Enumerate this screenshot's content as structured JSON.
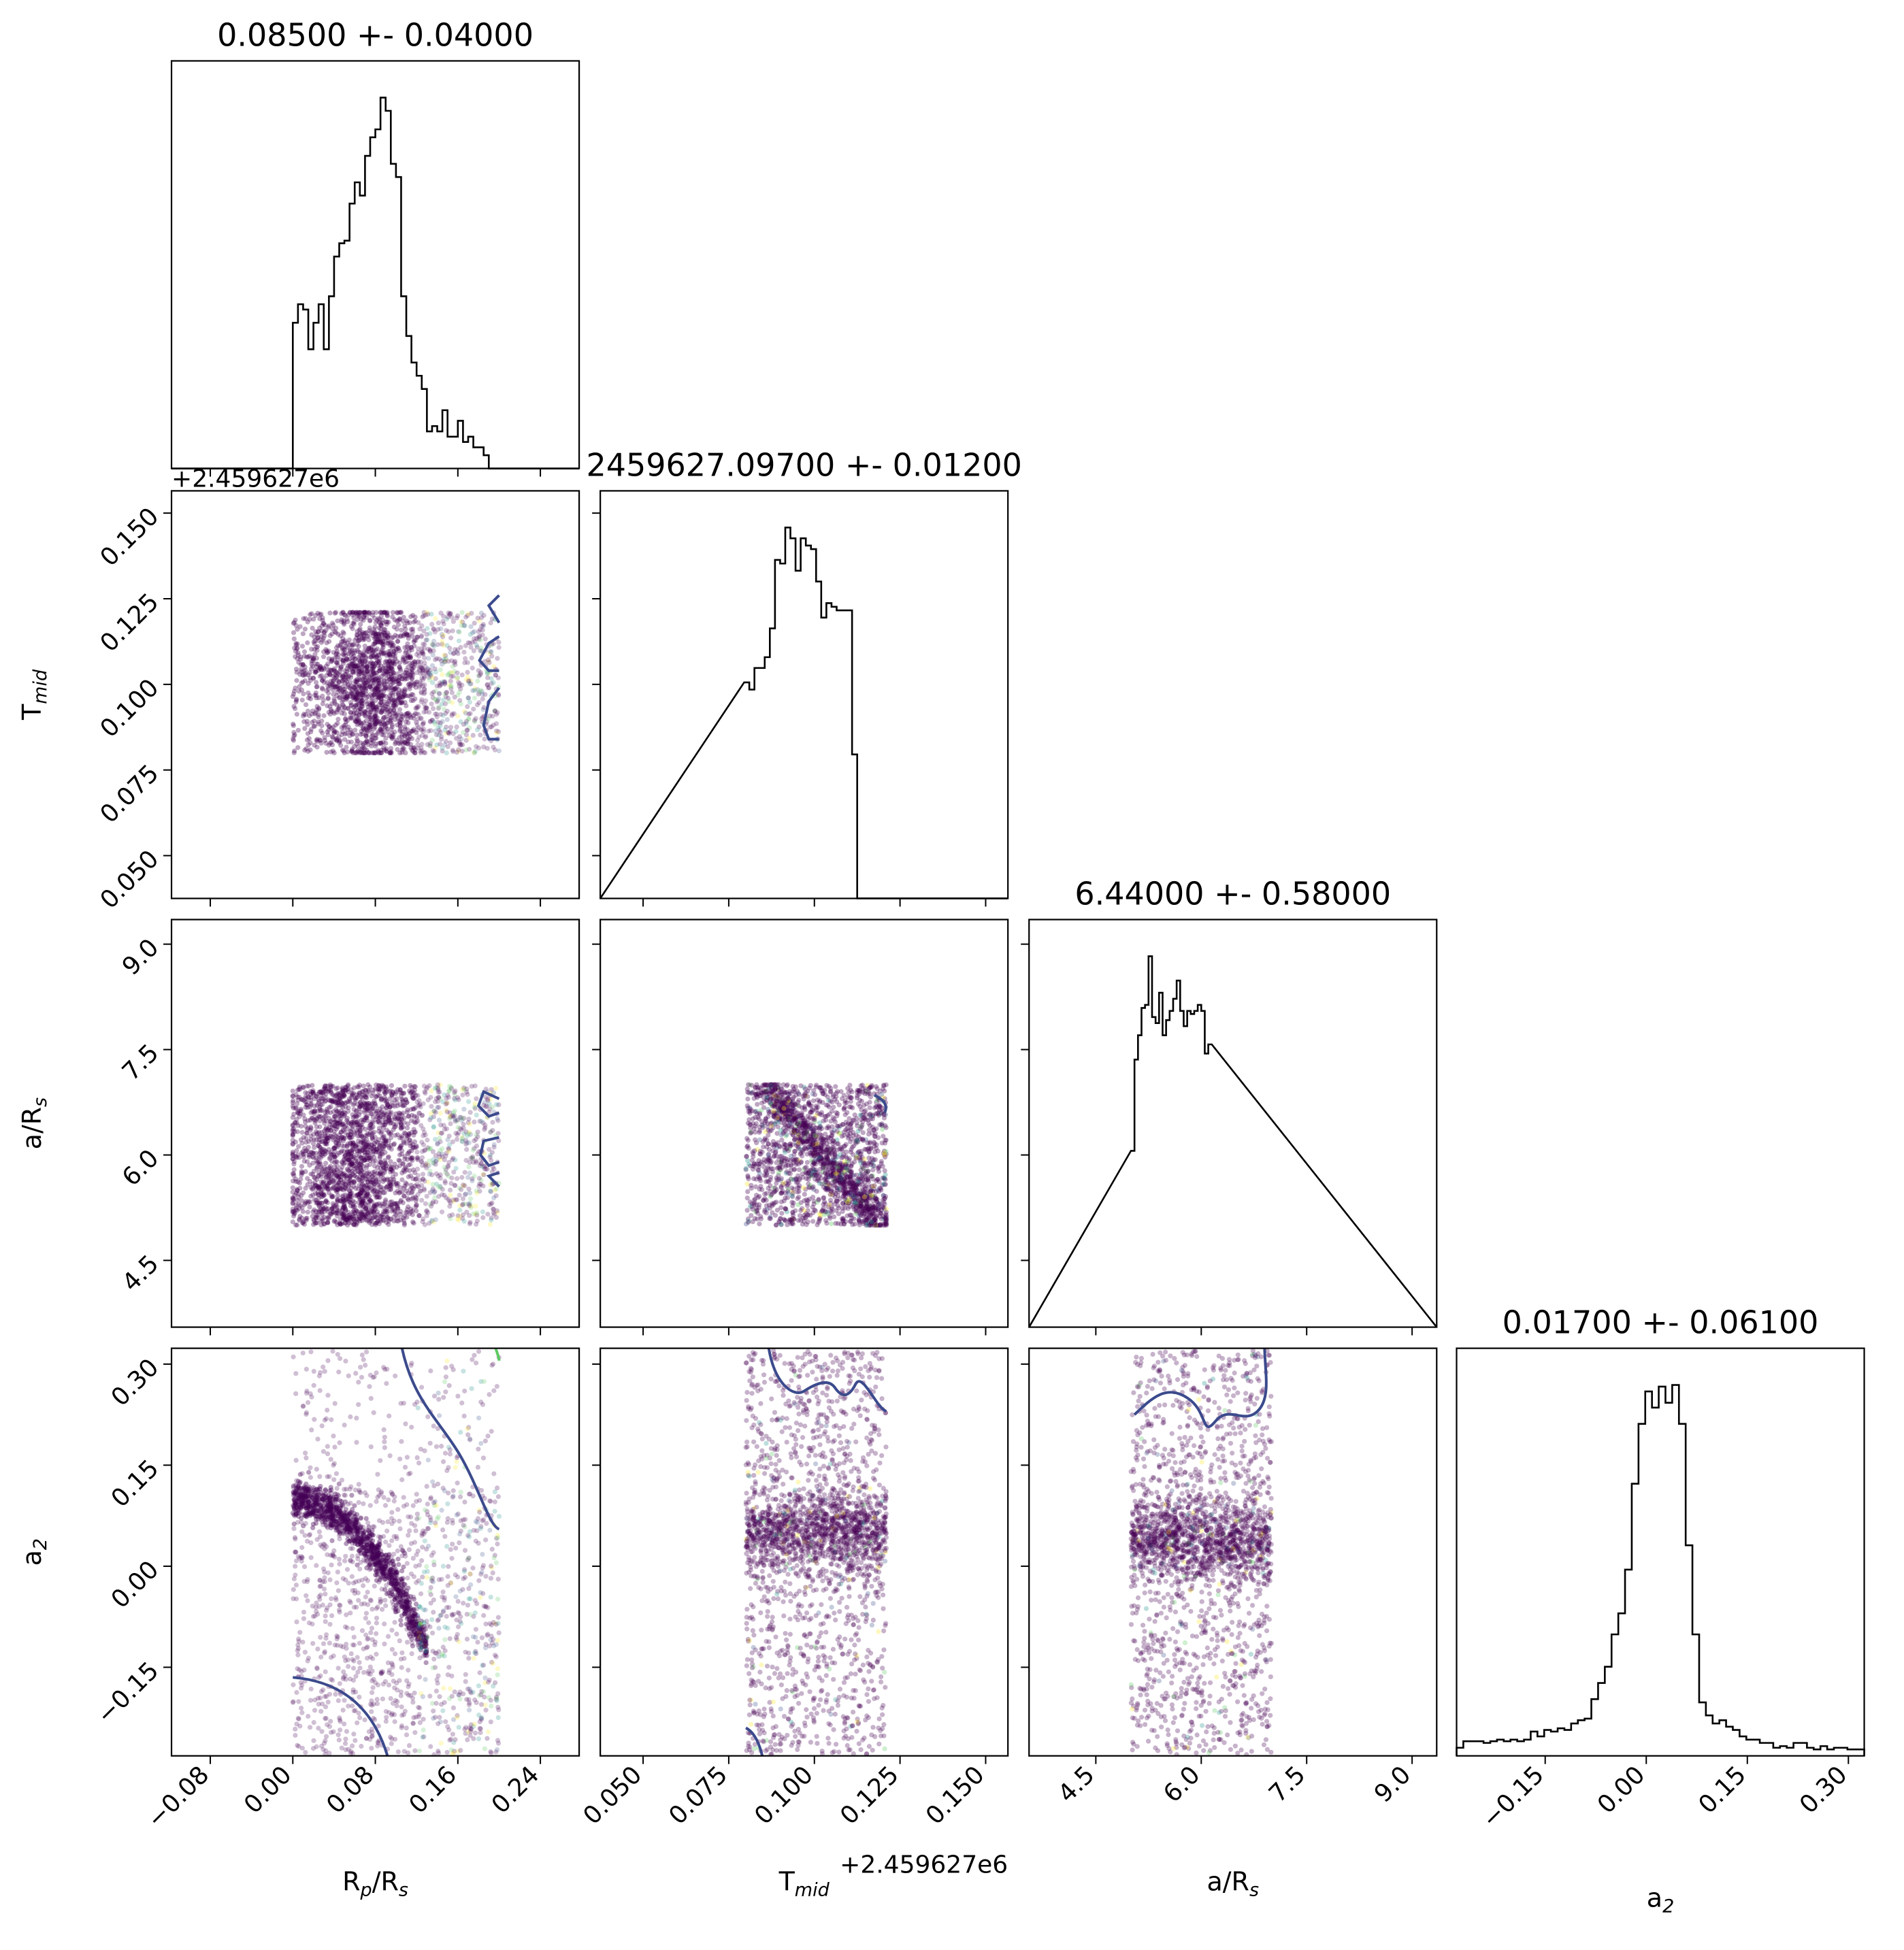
{
  "figure": {
    "offset_labels": {
      "col1_y": "+2.459627e6",
      "col1_x": "+2.459627e6"
    }
  },
  "params": [
    {
      "key": "rprs",
      "label_main": "R",
      "label_sub": "p",
      "label_mid": "/R",
      "label_sub2": "s",
      "title": "0.08500 +- 0.04000",
      "range": [
        -0.1176,
        0.2776
      ],
      "ticks": [
        -0.08,
        0.0,
        0.08,
        0.16,
        0.24
      ],
      "tick_labels": [
        "−0.08",
        "0.00",
        "0.08",
        "0.16",
        "0.24"
      ]
    },
    {
      "key": "tmid",
      "label_main": "T",
      "label_sub": "mid",
      "label_mid": "",
      "label_sub2": "",
      "title": "2459627.09700 +- 0.01200",
      "range": [
        0.0375,
        0.1565
      ],
      "ticks": [
        0.05,
        0.075,
        0.1,
        0.125,
        0.15
      ],
      "tick_labels": [
        "0.050",
        "0.075",
        "0.100",
        "0.125",
        "0.150"
      ]
    },
    {
      "key": "ars",
      "label_main": "a/R",
      "label_sub": "s",
      "label_mid": "",
      "label_sub2": "",
      "title": "6.44000 +- 0.58000",
      "range": [
        3.55,
        9.35
      ],
      "ticks": [
        4.5,
        6.0,
        7.5,
        9.0
      ],
      "tick_labels": [
        "4.5",
        "6.0",
        "7.5",
        "9.0"
      ]
    },
    {
      "key": "a2",
      "label_main": "a",
      "label_sub": "2",
      "label_mid": "",
      "label_sub2": "",
      "title": "0.01700 +- 0.06100",
      "range": [
        -0.2815,
        0.3235
      ],
      "ticks": [
        -0.15,
        0.0,
        0.15,
        0.3
      ],
      "tick_labels": [
        "−0.15",
        "0.00",
        "0.15",
        "0.30"
      ]
    }
  ],
  "chart_data": {
    "type": "corner",
    "histograms": [
      {
        "param": "rprs",
        "bin_start": -0.005,
        "bin_width": 0.005,
        "counts": [
          0,
          55,
          62,
          60,
          45,
          55,
          62,
          45,
          65,
          80,
          85,
          86,
          100,
          108,
          103,
          118,
          125,
          128,
          140,
          135,
          115,
          110,
          65,
          50,
          40,
          35,
          30,
          14,
          16,
          14,
          22,
          12,
          12,
          18,
          10,
          12,
          8,
          8,
          5,
          0
        ]
      },
      {
        "param": "tmid",
        "bin_start": 0.0795,
        "bin_width": 0.0015,
        "counts": [
          60,
          58,
          64,
          64,
          67,
          75,
          94,
          93,
          103,
          100,
          91,
          100,
          98,
          97,
          88,
          78,
          82,
          81,
          80,
          80,
          80,
          40,
          0,
          0
        ]
      },
      {
        "param": "ars",
        "bin_start": 5.0,
        "bin_width": 0.05,
        "counts": [
          58,
          88,
          96,
          105,
          106,
          122,
          102,
          100,
          110,
          96,
          101,
          104,
          108,
          114,
          104,
          99,
          104,
          103,
          104,
          106,
          104,
          90,
          93
        ]
      },
      {
        "param": "a2",
        "bin_start": -0.2815,
        "bin_width": 0.01,
        "counts": [
          5,
          9,
          9,
          9,
          8,
          9,
          10,
          9,
          10,
          9,
          10,
          15,
          12,
          16,
          15,
          17,
          16,
          20,
          22,
          23,
          35,
          45,
          55,
          75,
          88,
          115,
          168,
          205,
          225,
          215,
          228,
          218,
          229,
          205,
          130,
          75,
          33,
          25,
          20,
          22,
          18,
          16,
          12,
          10,
          10,
          8,
          8,
          5,
          6,
          5,
          8,
          8,
          5,
          4,
          6,
          4,
          5,
          5,
          4,
          4,
          4
        ]
      }
    ],
    "scatter_panels": [
      {
        "x": "rprs",
        "y": "tmid",
        "x_extent": [
          0.0,
          0.2
        ],
        "y_extent": [
          0.08,
          0.121
        ],
        "dense_center": [
          0.08,
          0.1
        ]
      },
      {
        "x": "rprs",
        "y": "ars",
        "x_extent": [
          0.0,
          0.2
        ],
        "y_extent": [
          5.0,
          7.0
        ],
        "dense_center": [
          0.08,
          6.0
        ]
      },
      {
        "x": "tmid",
        "y": "ars",
        "x_extent": [
          0.08,
          0.121
        ],
        "y_extent": [
          5.0,
          7.0
        ],
        "correlation": "negative"
      },
      {
        "x": "rprs",
        "y": "a2",
        "x_extent": [
          0.0,
          0.2
        ],
        "y_extent": [
          -0.28,
          0.32
        ],
        "correlation": "negative"
      },
      {
        "x": "tmid",
        "y": "a2",
        "x_extent": [
          0.08,
          0.121
        ],
        "y_extent": [
          -0.28,
          0.32
        ],
        "dense_band": [
          0.0,
          0.1
        ]
      },
      {
        "x": "ars",
        "y": "a2",
        "x_extent": [
          5.0,
          7.0
        ],
        "y_extent": [
          -0.28,
          0.32
        ],
        "dense_band": [
          0.0,
          0.1
        ]
      }
    ],
    "colors": {
      "scatter_primary": "#440154",
      "scatter_secondary": [
        "#3b528b",
        "#21918c",
        "#5ec962",
        "#fde725"
      ],
      "contour": "#3b4a8c",
      "contour_alt": "#5ec962",
      "hist_line": "#000000"
    }
  }
}
